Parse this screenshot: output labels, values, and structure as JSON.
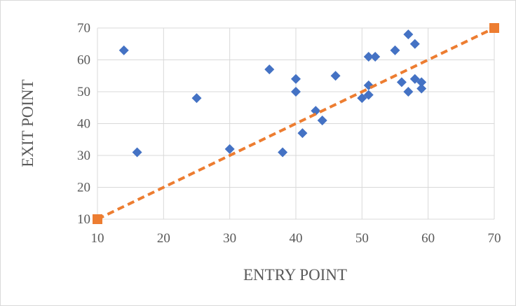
{
  "chart_data": {
    "type": "scatter",
    "title": "",
    "xlabel": "ENTRY POINT",
    "ylabel": "EXIT POINT",
    "xlim": [
      10,
      70
    ],
    "ylim": [
      10,
      70
    ],
    "x_ticks": [
      "10",
      "20",
      "30",
      "40",
      "50",
      "60",
      "70"
    ],
    "y_ticks": [
      "10",
      "20",
      "30",
      "40",
      "50",
      "60",
      "70"
    ],
    "grid": "horizontal",
    "legend": "none",
    "series": [
      {
        "marker": "diamond",
        "color": "#4472C4",
        "points": [
          {
            "x": 14,
            "y": 63
          },
          {
            "x": 16,
            "y": 31
          },
          {
            "x": 25,
            "y": 48
          },
          {
            "x": 30,
            "y": 32
          },
          {
            "x": 36,
            "y": 57
          },
          {
            "x": 38,
            "y": 31
          },
          {
            "x": 40,
            "y": 54
          },
          {
            "x": 40,
            "y": 50
          },
          {
            "x": 41,
            "y": 37
          },
          {
            "x": 43,
            "y": 44
          },
          {
            "x": 44,
            "y": 41
          },
          {
            "x": 46,
            "y": 55
          },
          {
            "x": 50,
            "y": 48
          },
          {
            "x": 51,
            "y": 61
          },
          {
            "x": 51,
            "y": 52
          },
          {
            "x": 51,
            "y": 49
          },
          {
            "x": 52,
            "y": 61
          },
          {
            "x": 55,
            "y": 63
          },
          {
            "x": 56,
            "y": 53
          },
          {
            "x": 57,
            "y": 68
          },
          {
            "x": 57,
            "y": 50
          },
          {
            "x": 58,
            "y": 65
          },
          {
            "x": 58,
            "y": 54
          },
          {
            "x": 59,
            "y": 53
          },
          {
            "x": 59,
            "y": 51
          }
        ]
      },
      {
        "marker": "square",
        "line": "dashed",
        "color": "#ED7D31",
        "points": [
          {
            "x": 10,
            "y": 10
          },
          {
            "x": 70,
            "y": 70
          }
        ]
      }
    ]
  }
}
